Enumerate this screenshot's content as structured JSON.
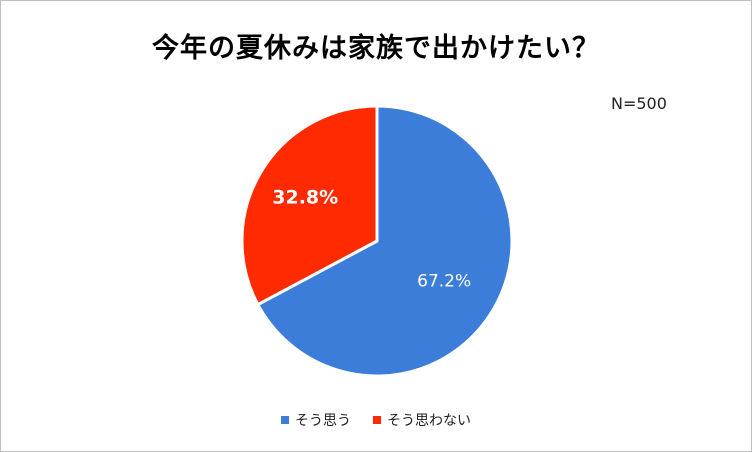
{
  "chart_data": {
    "type": "pie",
    "title": "今年の夏休みは家族で出かけたい？",
    "annotation": "N=500",
    "categories": [
      "そう思う",
      "そう思わない"
    ],
    "values": [
      67.2,
      32.8
    ],
    "labels": [
      "67.2%",
      "32.8%"
    ],
    "colors": [
      "#3b7dd8",
      "#ff2a00"
    ],
    "legend_position": "bottom"
  }
}
